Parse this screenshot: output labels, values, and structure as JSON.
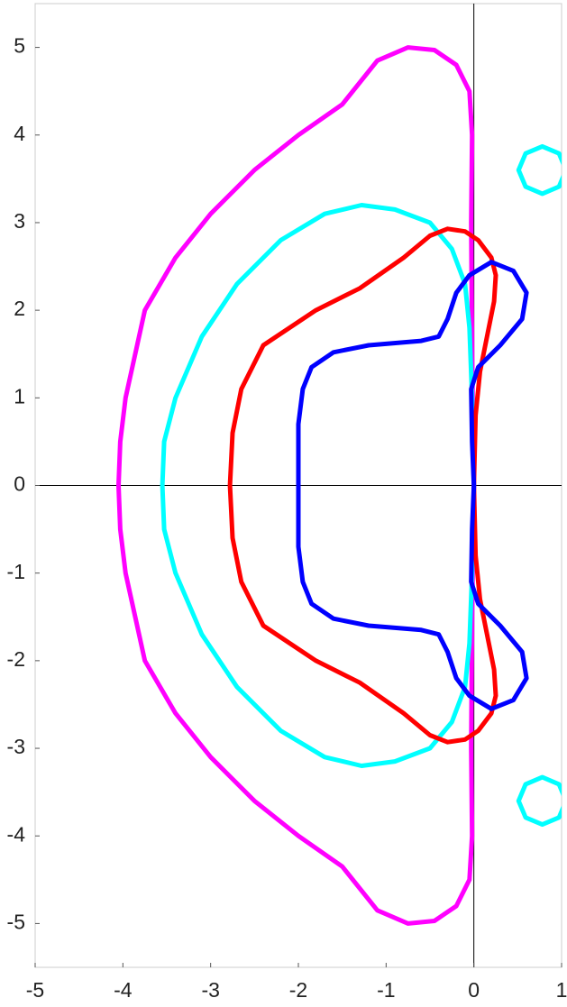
{
  "chart_data": {
    "type": "line",
    "xlim": [
      -5,
      1
    ],
    "ylim": [
      -5.5,
      5.5
    ],
    "xticks": [
      -5,
      -4,
      -3,
      -2,
      -1,
      0,
      1
    ],
    "yticks": [
      -5,
      -4,
      -3,
      -2,
      -1,
      0,
      1,
      2,
      3,
      4,
      5
    ],
    "zero_axes": true,
    "grid": false,
    "series": [
      {
        "color": "#ff00ff",
        "x": [
          0,
          -0.02,
          -0.03,
          -0.02,
          -0.05,
          -0.2,
          -0.45,
          -0.75,
          -1.1,
          -1.5,
          -2.0,
          -2.5,
          -3.0,
          -3.4,
          -3.75,
          -3.97,
          -4.03,
          -4.05,
          -4.03,
          -3.97,
          -3.75,
          -3.4,
          -3.0,
          -2.5,
          -2.0,
          -1.5,
          -1.1,
          -0.75,
          -0.45,
          -0.2,
          -0.05,
          -0.02,
          -0.03,
          -0.02,
          0
        ],
        "y": [
          0,
          1.5,
          3.0,
          4.0,
          4.5,
          4.8,
          4.97,
          5.0,
          4.85,
          4.35,
          4.0,
          3.6,
          3.1,
          2.6,
          2.0,
          1.0,
          0.5,
          0,
          -0.5,
          -1.0,
          -2.0,
          -2.6,
          -3.1,
          -3.6,
          -4.0,
          -4.35,
          -4.85,
          -5.0,
          -4.97,
          -4.8,
          -4.5,
          -4.0,
          -3.0,
          -1.5,
          0
        ]
      },
      {
        "color": "#00ffff",
        "x": [
          0,
          -0.02,
          -0.05,
          -0.1,
          -0.25,
          -0.5,
          -0.9,
          -1.28,
          -1.7,
          -2.2,
          -2.7,
          -3.1,
          -3.4,
          -3.53,
          -3.55,
          -3.53,
          -3.4,
          -3.1,
          -2.7,
          -2.2,
          -1.7,
          -1.28,
          -0.9,
          -0.5,
          -0.25,
          -0.1,
          -0.05,
          -0.02,
          0,
          null,
          1.05,
          0.97,
          0.78,
          0.59,
          0.51,
          0.59,
          0.78,
          0.97,
          1.05,
          null,
          1.05,
          0.97,
          0.78,
          0.59,
          0.51,
          0.59,
          0.78,
          0.97,
          1.05
        ],
        "y": [
          0,
          1.0,
          1.8,
          2.3,
          2.7,
          3.0,
          3.15,
          3.2,
          3.1,
          2.8,
          2.3,
          1.7,
          1.0,
          0.5,
          0,
          -0.5,
          -1.0,
          -1.7,
          -2.3,
          -2.8,
          -3.1,
          -3.2,
          -3.15,
          -3.0,
          -2.7,
          -2.3,
          -1.8,
          -1.0,
          0,
          null,
          3.6,
          3.79,
          3.87,
          3.79,
          3.6,
          3.41,
          3.33,
          3.41,
          3.6,
          null,
          -3.6,
          -3.41,
          -3.33,
          -3.41,
          -3.6,
          -3.79,
          -3.87,
          -3.79,
          -3.6
        ]
      },
      {
        "color": "#ff0000",
        "x": [
          0,
          0.02,
          0.07,
          0.15,
          0.23,
          0.25,
          0.2,
          0.05,
          -0.1,
          -0.3,
          -0.5,
          -0.8,
          -1.3,
          -1.8,
          -2.4,
          -2.65,
          -2.75,
          -2.78,
          -2.75,
          -2.65,
          -2.4,
          -1.8,
          -1.3,
          -0.8,
          -0.5,
          -0.3,
          -0.1,
          0.05,
          0.2,
          0.25,
          0.23,
          0.15,
          0.07,
          0.02,
          0
        ],
        "y": [
          0,
          0.8,
          1.3,
          1.7,
          2.1,
          2.4,
          2.6,
          2.8,
          2.9,
          2.93,
          2.85,
          2.6,
          2.25,
          2.0,
          1.6,
          1.1,
          0.6,
          0,
          -0.6,
          -1.1,
          -1.6,
          -2.0,
          -2.25,
          -2.6,
          -2.85,
          -2.93,
          -2.9,
          -2.8,
          -2.6,
          -2.4,
          -2.1,
          -1.7,
          -1.3,
          -0.8,
          0
        ]
      },
      {
        "color": "#0000ff",
        "x": [
          0,
          -0.02,
          -0.03,
          0.05,
          0.3,
          0.55,
          0.6,
          0.45,
          0.2,
          -0.05,
          -0.2,
          -0.3,
          -0.4,
          -0.6,
          -1.2,
          -1.6,
          -1.85,
          -1.95,
          -2.0,
          -2.0,
          -2.0,
          -1.95,
          -1.85,
          -1.6,
          -1.2,
          -0.6,
          -0.4,
          -0.3,
          -0.2,
          -0.05,
          0.2,
          0.45,
          0.6,
          0.55,
          0.3,
          0.05,
          -0.03,
          -0.02,
          0
        ],
        "y": [
          0,
          0.5,
          1.1,
          1.35,
          1.6,
          1.9,
          2.2,
          2.45,
          2.55,
          2.4,
          2.2,
          1.9,
          1.7,
          1.65,
          1.6,
          1.52,
          1.35,
          1.1,
          0.7,
          0,
          -0.7,
          -1.1,
          -1.35,
          -1.52,
          -1.6,
          -1.65,
          -1.7,
          -1.9,
          -2.2,
          -2.4,
          -2.55,
          -2.45,
          -2.2,
          -1.9,
          -1.6,
          -1.35,
          -1.1,
          -0.5,
          0
        ]
      }
    ]
  }
}
